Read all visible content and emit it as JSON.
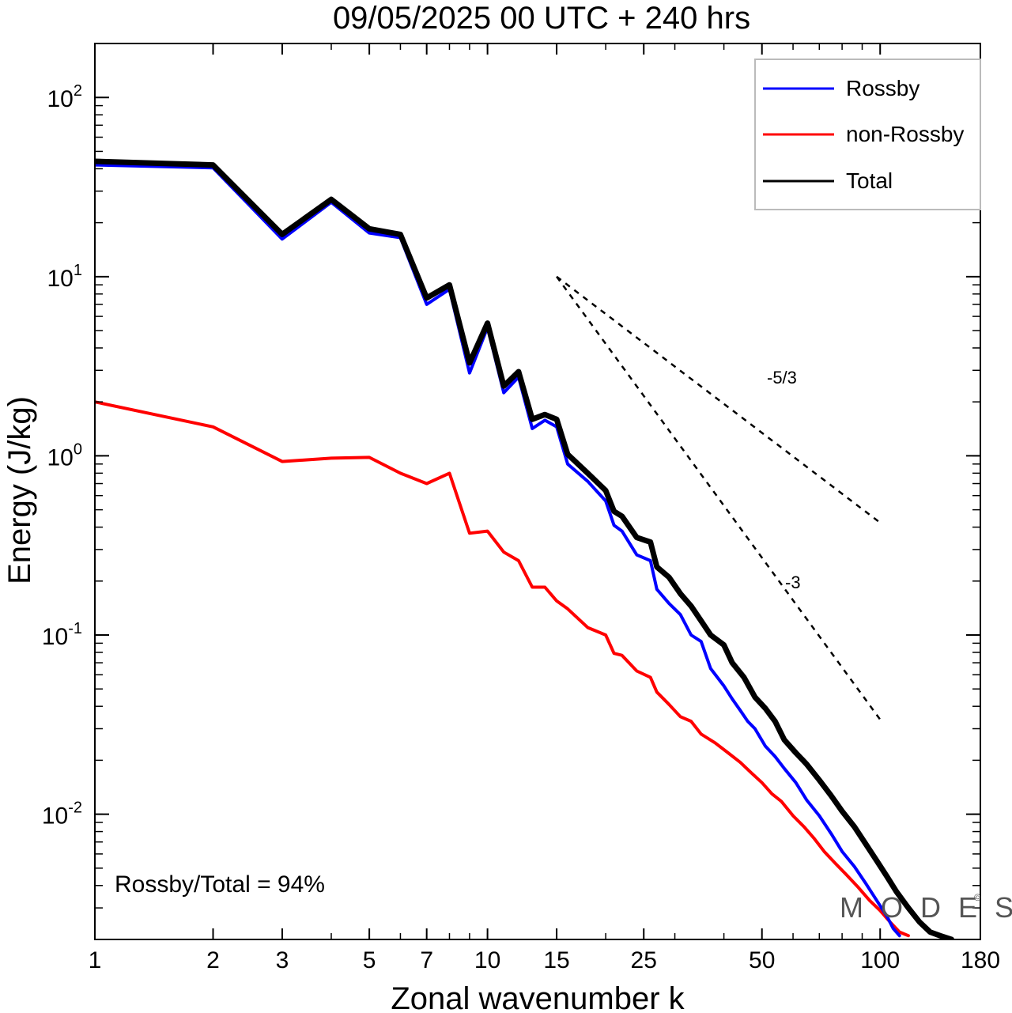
{
  "chart_data": {
    "type": "line",
    "title": "09/05/2025  00 UTC  + 240 hrs",
    "xlabel": "Zonal wavenumber k",
    "ylabel": "Energy (J/kg)",
    "x_scale": "log",
    "y_scale": "log",
    "xlim": [
      1,
      180
    ],
    "ylim": [
      0.002,
      200
    ],
    "x_ticks": [
      {
        "value": 1,
        "label": "1"
      },
      {
        "value": 2,
        "label": "2"
      },
      {
        "value": 3,
        "label": "3"
      },
      {
        "value": 5,
        "label": "5"
      },
      {
        "value": 7,
        "label": "7"
      },
      {
        "value": 10,
        "label": "10"
      },
      {
        "value": 15,
        "label": "15"
      },
      {
        "value": 25,
        "label": "25"
      },
      {
        "value": 50,
        "label": "50"
      },
      {
        "value": 100,
        "label": "100"
      },
      {
        "value": 180,
        "label": "180"
      }
    ],
    "y_ticks": [
      {
        "value": 100,
        "base": "10",
        "exp": "2"
      },
      {
        "value": 10,
        "base": "10",
        "exp": "1"
      },
      {
        "value": 1,
        "base": "10",
        "exp": "0"
      },
      {
        "value": 0.1,
        "base": "10",
        "exp": "-1"
      },
      {
        "value": 0.01,
        "base": "10",
        "exp": "-2"
      }
    ],
    "series": [
      {
        "name": "Rossby",
        "color": "#0000ff",
        "points": [
          [
            1,
            42.0
          ],
          [
            2,
            40.5
          ],
          [
            3,
            16.2
          ],
          [
            4,
            26.0
          ],
          [
            5,
            17.5
          ],
          [
            6,
            16.5
          ],
          [
            7,
            7.0
          ],
          [
            8,
            8.5
          ],
          [
            9,
            2.9
          ],
          [
            10,
            5.2
          ],
          [
            11,
            2.25
          ],
          [
            12,
            2.75
          ],
          [
            13,
            1.42
          ],
          [
            14,
            1.58
          ],
          [
            15,
            1.45
          ],
          [
            16,
            0.9
          ],
          [
            18,
            0.72
          ],
          [
            20,
            0.56
          ],
          [
            21,
            0.41
          ],
          [
            22,
            0.38
          ],
          [
            24,
            0.28
          ],
          [
            26,
            0.26
          ],
          [
            27,
            0.18
          ],
          [
            29,
            0.15
          ],
          [
            31,
            0.13
          ],
          [
            33,
            0.1
          ],
          [
            35,
            0.092
          ],
          [
            37,
            0.065
          ],
          [
            40,
            0.052
          ],
          [
            42,
            0.044
          ],
          [
            44,
            0.038
          ],
          [
            46,
            0.033
          ],
          [
            48,
            0.03
          ],
          [
            51,
            0.024
          ],
          [
            54,
            0.021
          ],
          [
            57,
            0.018
          ],
          [
            61,
            0.015
          ],
          [
            65,
            0.012
          ],
          [
            70,
            0.0098
          ],
          [
            75,
            0.0078
          ],
          [
            80,
            0.0062
          ],
          [
            86,
            0.0051
          ],
          [
            92,
            0.0041
          ],
          [
            98,
            0.0033
          ],
          [
            104,
            0.0027
          ],
          [
            108,
            0.0023
          ],
          [
            112,
            0.0021
          ]
        ]
      },
      {
        "name": "non-Rossby",
        "color": "#ff0000",
        "points": [
          [
            1,
            2.0
          ],
          [
            2,
            1.45
          ],
          [
            3,
            0.93
          ],
          [
            4,
            0.97
          ],
          [
            5,
            0.98
          ],
          [
            6,
            0.8
          ],
          [
            7,
            0.7
          ],
          [
            8,
            0.8
          ],
          [
            9,
            0.37
          ],
          [
            10,
            0.38
          ],
          [
            11,
            0.29
          ],
          [
            12,
            0.26
          ],
          [
            13,
            0.185
          ],
          [
            14,
            0.185
          ],
          [
            15,
            0.155
          ],
          [
            16,
            0.14
          ],
          [
            18,
            0.11
          ],
          [
            20,
            0.1
          ],
          [
            21,
            0.079
          ],
          [
            22,
            0.077
          ],
          [
            24,
            0.063
          ],
          [
            26,
            0.058
          ],
          [
            27,
            0.048
          ],
          [
            29,
            0.041
          ],
          [
            31,
            0.035
          ],
          [
            33,
            0.033
          ],
          [
            35,
            0.028
          ],
          [
            38,
            0.025
          ],
          [
            41,
            0.022
          ],
          [
            44,
            0.0195
          ],
          [
            47,
            0.017
          ],
          [
            50,
            0.015
          ],
          [
            53,
            0.013
          ],
          [
            56,
            0.0118
          ],
          [
            60,
            0.0098
          ],
          [
            64,
            0.0085
          ],
          [
            68,
            0.0073
          ],
          [
            72,
            0.0062
          ],
          [
            77,
            0.0053
          ],
          [
            82,
            0.0046
          ],
          [
            88,
            0.0039
          ],
          [
            94,
            0.0033
          ],
          [
            100,
            0.0029
          ],
          [
            106,
            0.0025
          ],
          [
            112,
            0.0022
          ],
          [
            118,
            0.0021
          ]
        ]
      },
      {
        "name": "Total",
        "color": "#000000",
        "points": [
          [
            1,
            44.0
          ],
          [
            2,
            42.0
          ],
          [
            3,
            17.2
          ],
          [
            4,
            27.0
          ],
          [
            5,
            18.5
          ],
          [
            6,
            17.2
          ],
          [
            7,
            7.6
          ],
          [
            8,
            9.0
          ],
          [
            9,
            3.3
          ],
          [
            10,
            5.5
          ],
          [
            11,
            2.45
          ],
          [
            12,
            2.95
          ],
          [
            13,
            1.6
          ],
          [
            14,
            1.7
          ],
          [
            15,
            1.6
          ],
          [
            16,
            1.02
          ],
          [
            18,
            0.8
          ],
          [
            20,
            0.64
          ],
          [
            21,
            0.49
          ],
          [
            22,
            0.46
          ],
          [
            24,
            0.35
          ],
          [
            26,
            0.33
          ],
          [
            27,
            0.24
          ],
          [
            29,
            0.21
          ],
          [
            31,
            0.17
          ],
          [
            33,
            0.145
          ],
          [
            35,
            0.12
          ],
          [
            37,
            0.1
          ],
          [
            40,
            0.088
          ],
          [
            42,
            0.07
          ],
          [
            45,
            0.058
          ],
          [
            48,
            0.045
          ],
          [
            51,
            0.039
          ],
          [
            54,
            0.033
          ],
          [
            57,
            0.026
          ],
          [
            61,
            0.022
          ],
          [
            65,
            0.019
          ],
          [
            70,
            0.0155
          ],
          [
            75,
            0.0127
          ],
          [
            80,
            0.0104
          ],
          [
            86,
            0.0085
          ],
          [
            92,
            0.0068
          ],
          [
            98,
            0.0055
          ],
          [
            104,
            0.0045
          ],
          [
            110,
            0.0037
          ],
          [
            118,
            0.003
          ],
          [
            126,
            0.0025
          ],
          [
            134,
            0.0022
          ],
          [
            142,
            0.0021
          ],
          [
            152,
            0.002
          ]
        ]
      }
    ],
    "reference_lines": [
      {
        "label": "-5/3",
        "slope": -1.6667,
        "x_start": 15,
        "y_start": 10,
        "x_end": 100
      },
      {
        "label": "-3",
        "slope": -3,
        "x_start": 15,
        "y_start": 10,
        "x_end": 100
      }
    ],
    "legend_position": "top-right",
    "grid": false
  },
  "annotations": {
    "ratio_text": "Rossby/Total = 94%",
    "brand_text": "M O D E S",
    "brand_mark": "©"
  }
}
